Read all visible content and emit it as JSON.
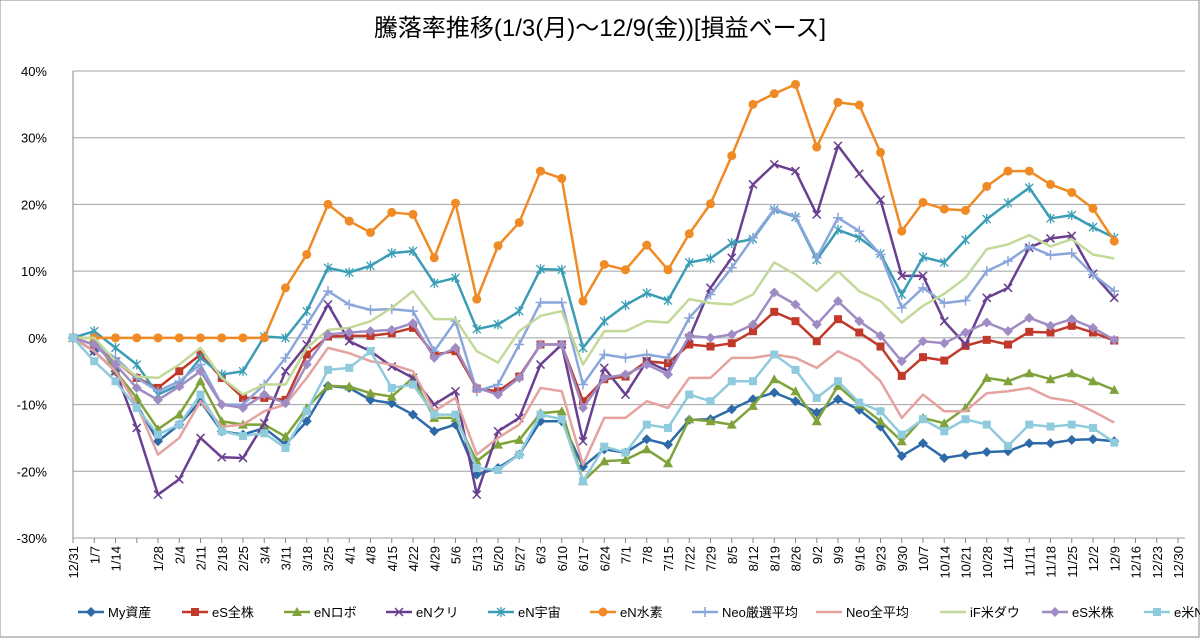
{
  "chart_data": {
    "type": "line",
    "title": "騰落率推移(1/3(月)～12/9(金))[損益ベース]",
    "categories": [
      "12/31",
      "1/7",
      "1/14",
      null,
      "1/28",
      "2/4",
      "2/11",
      "2/18",
      "2/25",
      "3/4",
      "3/11",
      "3/18",
      "3/25",
      "4/1",
      "4/8",
      "4/15",
      "4/22",
      "4/29",
      "5/6",
      "5/13",
      "5/20",
      "5/27",
      "6/3",
      "6/10",
      "6/17",
      "6/24",
      "7/1",
      "7/8",
      "7/15",
      "7/22",
      "7/29",
      "8/5",
      "8/12",
      "8/19",
      "8/26",
      "9/2",
      "9/9",
      "9/16",
      "9/23",
      "9/30",
      "10/7",
      "10/14",
      "10/21",
      "10/28",
      "11/4",
      "11/11",
      "11/18",
      "11/25",
      "12/2",
      "12/9",
      "12/16",
      "12/23",
      "12/30"
    ],
    "ylim": [
      -30,
      40
    ],
    "yticks": [
      {
        "value": -30,
        "label": "-30%"
      },
      {
        "value": -20,
        "label": "-20%"
      },
      {
        "value": -10,
        "label": "-10%"
      },
      {
        "value": 0,
        "label": "0%"
      },
      {
        "value": 10,
        "label": "10%"
      },
      {
        "value": 20,
        "label": "20%"
      },
      {
        "value": 30,
        "label": "30%"
      },
      {
        "value": 40,
        "label": "40%"
      }
    ],
    "grid": true,
    "legend": "bottom",
    "series": [
      {
        "name": "My資産",
        "color": "#2E6AA8",
        "marker": "diamond",
        "values": [
          0,
          -2,
          -5,
          -10,
          -15.5,
          -13,
          -9.5,
          -14,
          -14.5,
          -13.5,
          -16,
          -12.5,
          -7.2,
          -7.5,
          -9.3,
          -9.8,
          -11.5,
          -14,
          -13,
          -20.5,
          -19.5,
          -17.5,
          -12.5,
          -12.5,
          -19.3,
          -16.7,
          -17.2,
          -15.2,
          -16,
          -12.3,
          -12.2,
          -10.7,
          -9.2,
          -8.2,
          -9.5,
          -11.2,
          -9.2,
          -10.8,
          -13.3,
          -17.7,
          -15.8,
          -18,
          -17.5,
          -17.1,
          -17,
          -15.8,
          -15.8,
          -15.3,
          -15.2,
          -15.5,
          null,
          null,
          null
        ]
      },
      {
        "name": "eS全株",
        "color": "#C0392B",
        "marker": "square",
        "values": [
          0,
          -1,
          -3.5,
          -6,
          -7.5,
          -5,
          -2.5,
          -6,
          -9,
          -9,
          -9.3,
          -2.5,
          0.2,
          0.3,
          0.3,
          0.7,
          1.5,
          -2.5,
          -2,
          -7.6,
          -8,
          -5.8,
          -1,
          -1,
          -9.5,
          -6.2,
          -5.8,
          -3.5,
          -3.8,
          -1,
          -1.3,
          -0.8,
          1,
          3.9,
          2.5,
          -0.5,
          2.8,
          0.8,
          -1.3,
          -5.7,
          -2.9,
          -3.4,
          -1.2,
          -0.3,
          -1,
          0.9,
          0.8,
          1.8,
          0.8,
          -0.4,
          null,
          null,
          null
        ]
      },
      {
        "name": "eNロボ",
        "color": "#7FA33A",
        "marker": "triangle",
        "values": [
          0,
          0,
          -5,
          -9,
          -13.7,
          -11.5,
          -6.5,
          -12.5,
          -13,
          -13,
          -14.8,
          -10.5,
          -7.2,
          -7.3,
          -8.3,
          -8.8,
          -6,
          -12,
          -12,
          -18.5,
          -16,
          -15.3,
          -11.3,
          -11,
          -21.5,
          -18.5,
          -18.3,
          -16.7,
          -18.8,
          -12.2,
          -12.5,
          -13,
          -10.2,
          -6.2,
          -8,
          -12.5,
          -7.2,
          -10,
          -12.5,
          -15.5,
          -12,
          -12.8,
          -10.5,
          -6,
          -6.5,
          -5.3,
          -6.2,
          -5.3,
          -6.5,
          -7.8,
          null,
          null,
          null
        ]
      },
      {
        "name": "eNクリ",
        "color": "#6A3F8F",
        "marker": "x",
        "values": [
          0,
          -2,
          -5,
          -13.5,
          -23.5,
          -21.2,
          -15,
          -17.9,
          -18,
          -12.8,
          -5,
          -1,
          5,
          -0.5,
          -2,
          -4.3,
          -6,
          -10,
          -8,
          -23.5,
          -14,
          -12,
          -4,
          -1,
          -15.5,
          -4.5,
          -8.5,
          -3.5,
          -5,
          0,
          7.5,
          12,
          23,
          26,
          25,
          18.5,
          28.8,
          24.6,
          20.7,
          9.3,
          9.3,
          2.5,
          -1,
          6,
          7.5,
          13.5,
          14.9,
          15.3,
          9.6,
          6,
          null,
          null,
          null
        ]
      },
      {
        "name": "eN宇宙",
        "color": "#3A9DB5",
        "marker": "star",
        "values": [
          0,
          1,
          -1.5,
          -4,
          -8.5,
          -7,
          -3,
          -5.5,
          -5,
          0.2,
          0,
          4,
          10.5,
          9.8,
          10.8,
          12.7,
          13,
          8.2,
          9,
          1.3,
          2,
          4,
          10.3,
          10.2,
          -1.5,
          2.5,
          4.9,
          6.7,
          5.6,
          11.3,
          11.9,
          14.2,
          14.8,
          19.2,
          18.1,
          11.7,
          16.2,
          15,
          12.6,
          6.5,
          12.1,
          11.3,
          14.7,
          17.8,
          20.2,
          22.5,
          17.9,
          18.4,
          16.6,
          15,
          null,
          null,
          null
        ]
      },
      {
        "name": "eN水素",
        "color": "#F08A24",
        "marker": "circle",
        "values": [
          0,
          0,
          0,
          0,
          0,
          0,
          0,
          0,
          0,
          0,
          7.5,
          12.5,
          20,
          17.5,
          15.8,
          18.8,
          18.5,
          12,
          20.2,
          5.8,
          13.8,
          17.3,
          25,
          23.9,
          5.5,
          11,
          10.2,
          13.9,
          10.2,
          15.6,
          20.1,
          27.3,
          35,
          36.6,
          38,
          28.6,
          35.3,
          34.9,
          27.8,
          16,
          20.3,
          19.3,
          19.1,
          22.7,
          25,
          25,
          23,
          21.8,
          19.4,
          14.5,
          null,
          null,
          null
        ]
      },
      {
        "name": "Neo厳選平均",
        "color": "#8AA6DA",
        "marker": "plus",
        "values": [
          0,
          -1,
          -3,
          -6,
          -8,
          -6.5,
          -4,
          -10,
          -10,
          -7,
          -3,
          2,
          7,
          5,
          4.2,
          4.3,
          4,
          -2,
          2.5,
          -8,
          -7,
          -1,
          5.3,
          5.3,
          -7,
          -2.5,
          -3,
          -2.5,
          -3,
          3,
          6.5,
          10.5,
          15,
          19.3,
          18.2,
          12,
          18,
          16,
          12.5,
          4.5,
          7.5,
          5.2,
          5.6,
          10,
          11.5,
          13.7,
          12.4,
          12.7,
          9.5,
          7,
          null,
          null,
          null
        ]
      },
      {
        "name": "Neo全平均",
        "color": "#E5A3A0",
        "marker": "none",
        "values": [
          0,
          -2,
          -5,
          -10,
          -17.5,
          -15,
          -9.5,
          -13.3,
          -13,
          -11,
          -10,
          -6,
          -1.5,
          -2.3,
          -3.5,
          -4,
          -5,
          -11,
          -9,
          -17.5,
          -15,
          -13,
          -7.5,
          -8,
          -19,
          -12,
          -12,
          -9.5,
          -10.5,
          -6,
          -6,
          -3,
          -3,
          -2.5,
          -3,
          -4.5,
          -2,
          -3.5,
          -6.5,
          -12,
          -8.5,
          -11,
          -11,
          -8.3,
          -8,
          -7.5,
          -9,
          -9.5,
          -11,
          -12.7,
          null,
          null,
          null
        ]
      },
      {
        "name": "iF米ダウ",
        "color": "#C3D99A",
        "marker": "none",
        "values": [
          0,
          0,
          -3.5,
          -5.8,
          -6,
          -4,
          -1.5,
          -6,
          -8.5,
          -7,
          -7,
          -1.5,
          1.2,
          1.5,
          2.5,
          4.5,
          7,
          2.8,
          2.8,
          -2,
          -3.7,
          1,
          3.3,
          4,
          -4,
          1,
          1,
          2.5,
          2.3,
          5.8,
          5.2,
          5,
          6.5,
          11.3,
          9.5,
          7,
          10,
          7,
          5.5,
          2.3,
          4.8,
          6.6,
          9,
          13.3,
          14,
          15.4,
          13.7,
          14.8,
          12.5,
          11.9,
          null,
          null,
          null
        ]
      },
      {
        "name": "eS米株",
        "color": "#A08CC4",
        "marker": "diamond",
        "values": [
          0,
          -1,
          -4,
          -7.5,
          -9.3,
          -7.3,
          -5,
          -10,
          -10.5,
          -8.5,
          -9.8,
          -4,
          0.5,
          0.8,
          1,
          1.2,
          2.2,
          -3,
          -1.5,
          -7.5,
          -8.5,
          -6,
          -1,
          -1,
          -10.5,
          -6,
          -5.5,
          -4,
          -5.5,
          0.3,
          0,
          0.5,
          2,
          6.8,
          5,
          2,
          5.5,
          2.5,
          0.3,
          -3.5,
          -0.5,
          -0.8,
          0.8,
          2.3,
          1,
          3,
          1.8,
          2.8,
          1.5,
          -0.3,
          null,
          null,
          null
        ]
      },
      {
        "name": "e米NQ",
        "color": "#8FCBDC",
        "marker": "square",
        "values": [
          0,
          -3.5,
          -6.5,
          -10.5,
          -14.5,
          -13,
          -8.5,
          -14,
          -14.7,
          -14.3,
          -16.5,
          -11,
          -4.8,
          -4.5,
          -2,
          -7.5,
          -7,
          -11.5,
          -11.5,
          -19.5,
          -19.8,
          -17.5,
          -11.5,
          -12.2,
          -21.5,
          -16.3,
          -17.2,
          -13,
          -13.5,
          -8.5,
          -9.5,
          -6.5,
          -6.5,
          -2.5,
          -4.8,
          -9,
          -6.5,
          -9.7,
          -11,
          -14.5,
          -12.2,
          -14,
          -12.2,
          -13,
          -16.2,
          -13,
          -13.3,
          -13,
          -13.5,
          -15.7,
          null,
          null,
          null
        ]
      }
    ]
  }
}
